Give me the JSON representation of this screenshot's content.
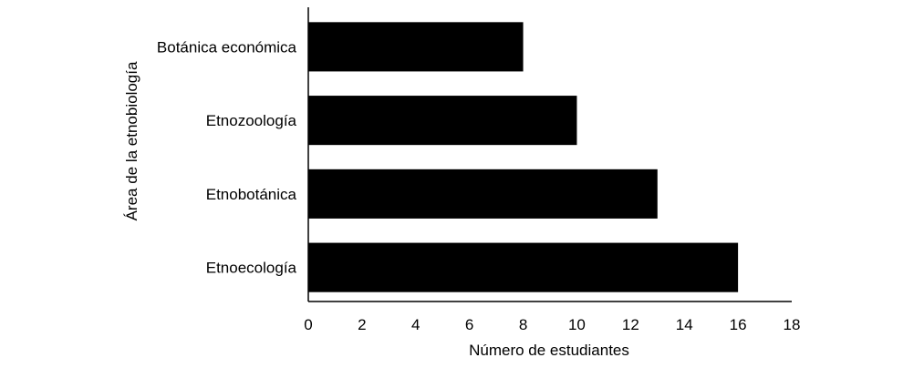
{
  "chart_data": {
    "type": "bar",
    "orientation": "horizontal",
    "categories": [
      "Botánica económica",
      "Etnozoología",
      "Etnobotánica",
      "Etnoecología"
    ],
    "values": [
      8,
      10,
      13,
      16
    ],
    "xlabel": "Número de estudiantes",
    "ylabel": "Área de la etnobiología",
    "xlim": [
      0,
      18
    ],
    "xticks": [
      "0",
      "2",
      "4",
      "6",
      "8",
      "10",
      "12",
      "14",
      "16",
      "18"
    ],
    "grid": false,
    "bar_color": "#000000"
  }
}
